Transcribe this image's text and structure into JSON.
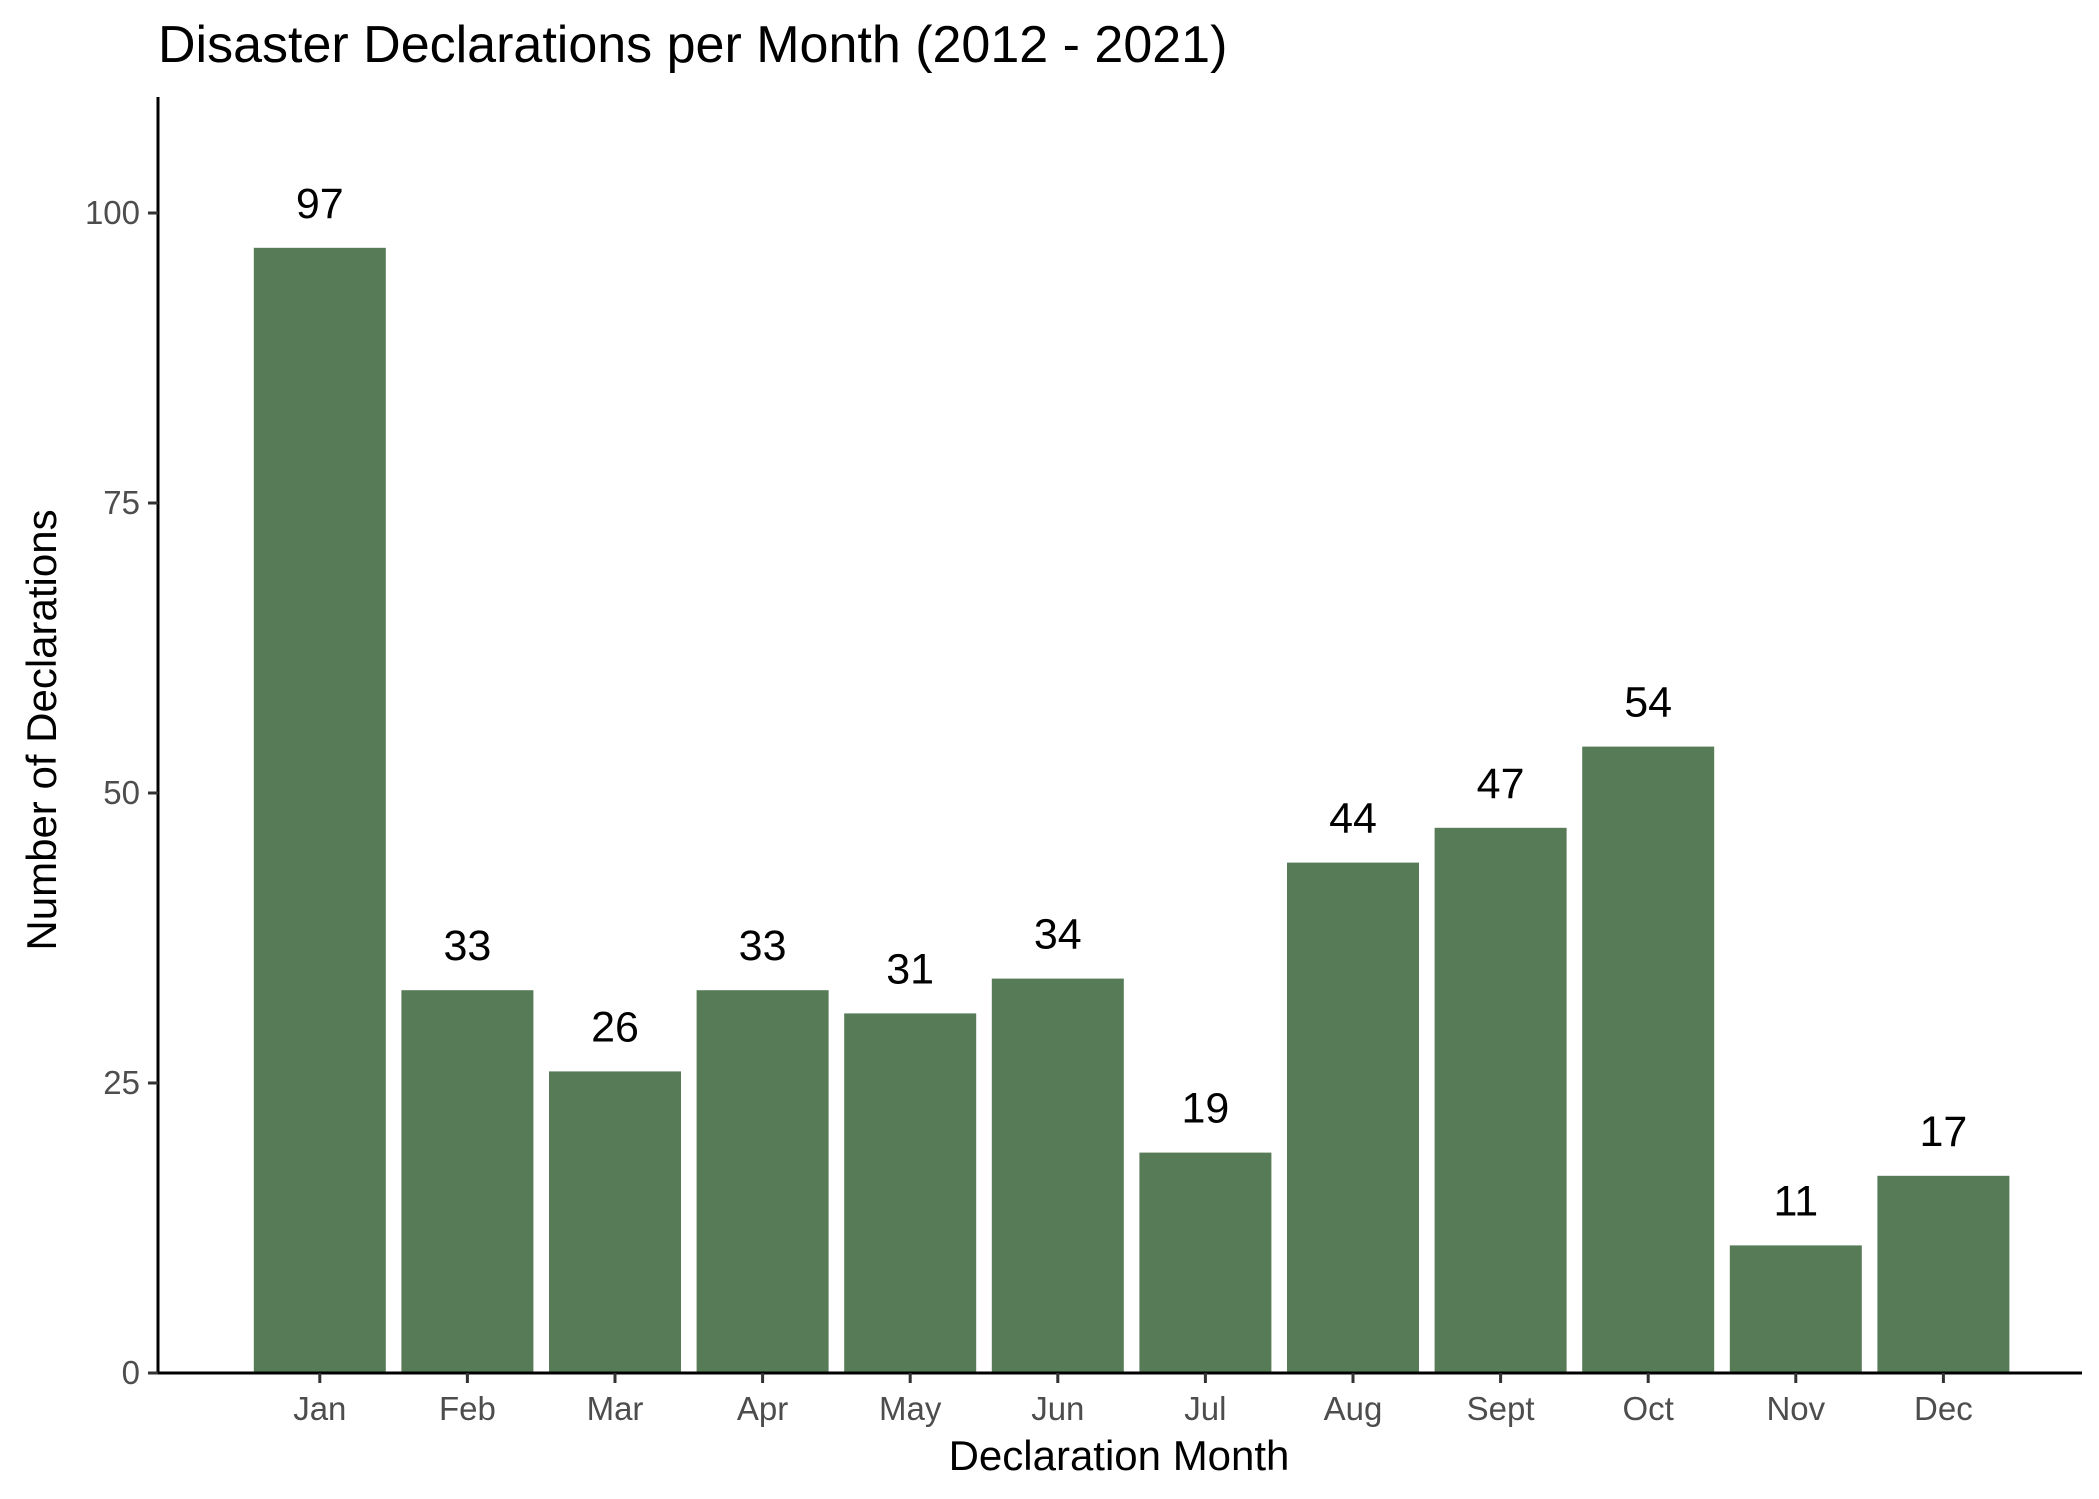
{
  "chart_data": {
    "type": "bar",
    "title": "Disaster Declarations per Month (2012 - 2021)",
    "xlabel": "Declaration Month",
    "ylabel": "Number of Declarations",
    "categories": [
      "Jan",
      "Feb",
      "Mar",
      "Apr",
      "May",
      "Jun",
      "Jul",
      "Aug",
      "Sept",
      "Oct",
      "Nov",
      "Dec"
    ],
    "values": [
      97,
      33,
      26,
      33,
      31,
      34,
      19,
      44,
      47,
      54,
      11,
      17
    ],
    "ylim": [
      0,
      110
    ],
    "yticks": [
      0,
      25,
      50,
      75,
      100
    ],
    "bar_color": "#577b57",
    "grid": false,
    "legend": "none"
  }
}
